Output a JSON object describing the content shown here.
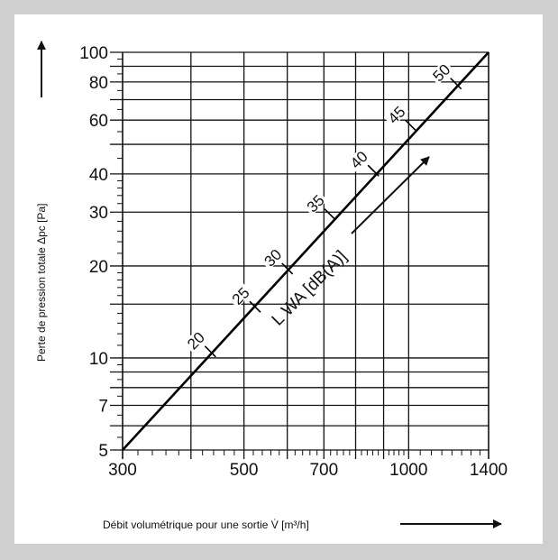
{
  "chart_data": {
    "type": "line",
    "xlabel": "Débit volumétrique pour une sortie V̇ [m³/h]",
    "ylabel": "Perte de pression totale  Δpc  [Pa]",
    "x_scale": "log",
    "y_scale": "log",
    "xlim": [
      300,
      1400
    ],
    "ylim": [
      5,
      100
    ],
    "x_ticks": [
      300,
      500,
      700,
      1000,
      1400
    ],
    "y_ticks": [
      5,
      7,
      10,
      20,
      30,
      40,
      60,
      80,
      100
    ],
    "x_grid": [
      300,
      400,
      500,
      600,
      700,
      800,
      900,
      1000,
      1400
    ],
    "y_grid": [
      5,
      6,
      7,
      8,
      9,
      10,
      15,
      20,
      30,
      40,
      50,
      60,
      70,
      80,
      90,
      100
    ],
    "grid": true,
    "series": [
      {
        "x": [
          300,
          1400
        ],
        "y": [
          5,
          100
        ]
      }
    ],
    "sound_marks": [
      {
        "label": "20",
        "x": 434,
        "y": 10.5
      },
      {
        "label": "25",
        "x": 524,
        "y": 14.7
      },
      {
        "label": "30",
        "x": 600,
        "y": 19.6
      },
      {
        "label": "35",
        "x": 718,
        "y": 29.5
      },
      {
        "label": "40",
        "x": 862,
        "y": 41
      },
      {
        "label": "45",
        "x": 1010,
        "y": 57.5
      },
      {
        "label": "50",
        "x": 1220,
        "y": 79
      }
    ],
    "annotation": "L WA [dB(A)]"
  }
}
